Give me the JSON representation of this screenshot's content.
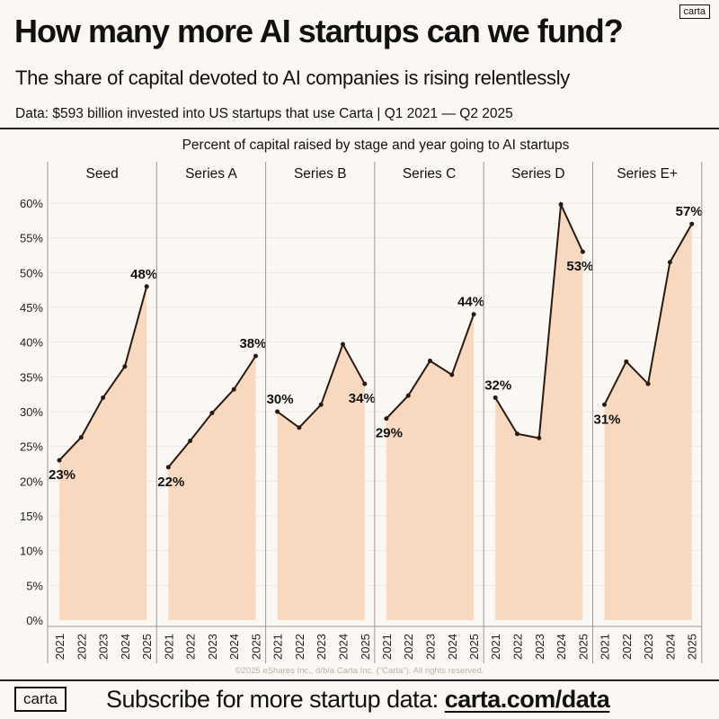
{
  "header": {
    "title": "How many more AI startups can we fund?",
    "subtitle": "The share of capital devoted to AI companies is rising relentlessly",
    "source": "Data: $593 billion invested into US startups that use Carta | Q1 2021 — Q2 2025",
    "logo": "carta"
  },
  "chart_data": {
    "type": "area",
    "title": "Percent of capital raised by stage and year going to AI startups",
    "xlabel": "",
    "ylabel": "",
    "ylim": [
      0,
      60
    ],
    "yticks": [
      "0%",
      "5%",
      "10%",
      "15%",
      "20%",
      "25%",
      "30%",
      "35%",
      "40%",
      "45%",
      "50%",
      "55%",
      "60%"
    ],
    "categories": [
      "2021",
      "2022",
      "2023",
      "2024",
      "2025"
    ],
    "grid": true,
    "series": [
      {
        "name": "Seed",
        "values": [
          23,
          26.3,
          32,
          36.5,
          48
        ],
        "first_label": "23%",
        "last_label": "48%",
        "first_pos": "below",
        "last_pos": "above"
      },
      {
        "name": "Series A",
        "values": [
          22,
          25.8,
          29.8,
          33.2,
          38
        ],
        "first_label": "22%",
        "last_label": "38%",
        "first_pos": "below",
        "last_pos": "above"
      },
      {
        "name": "Series B",
        "values": [
          30,
          27.7,
          31,
          39.7,
          34
        ],
        "first_label": "30%",
        "last_label": "34%",
        "first_pos": "above",
        "last_pos": "below"
      },
      {
        "name": "Series C",
        "values": [
          29,
          32.3,
          37.3,
          35.3,
          44
        ],
        "first_label": "29%",
        "last_label": "44%",
        "first_pos": "below",
        "last_pos": "above"
      },
      {
        "name": "Series D",
        "values": [
          32,
          26.8,
          26.2,
          59.8,
          53
        ],
        "first_label": "32%",
        "last_label": "53%",
        "first_pos": "above",
        "last_pos": "below"
      },
      {
        "name": "Series E+",
        "values": [
          31,
          37.2,
          34,
          51.5,
          57
        ],
        "first_label": "31%",
        "last_label": "57%",
        "first_pos": "below",
        "last_pos": "above"
      }
    ],
    "colors": {
      "fill": "#f8d9bf",
      "line": "#2a1a12",
      "grid": "#efe9e2",
      "divider": "#999999"
    }
  },
  "copyright": "©2025 eShares Inc., d/b/a Carta Inc. (\"Carta\"). All rights reserved.",
  "footer": {
    "logo": "carta",
    "text": "Subscribe for more startup data: ",
    "link": "carta.com/data"
  }
}
